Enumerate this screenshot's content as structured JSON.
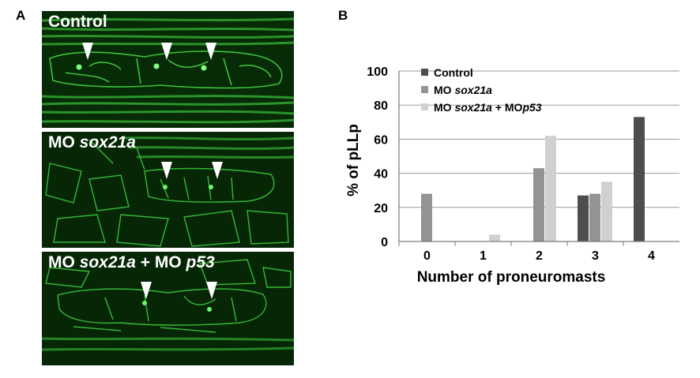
{
  "panel_a": {
    "letter": "A",
    "images": [
      {
        "label_prefix": "Control",
        "label_gene": "",
        "label_mid": "",
        "label_gene2": ""
      },
      {
        "label_prefix": "MO ",
        "label_gene": "sox21a",
        "label_mid": "",
        "label_gene2": ""
      },
      {
        "label_prefix": "MO ",
        "label_gene": "sox21a",
        "label_mid": " + MO ",
        "label_gene2": "p53"
      }
    ]
  },
  "panel_b": {
    "letter": "B"
  },
  "chart_data": {
    "type": "bar",
    "xlabel": "Number of proneuromasts",
    "ylabel": "% of pLLp",
    "categories": [
      "0",
      "1",
      "2",
      "3",
      "4"
    ],
    "ylim": [
      0,
      100
    ],
    "yticks": [
      0,
      20,
      40,
      60,
      80,
      100
    ],
    "grid": true,
    "legend_position": "top-left",
    "series": [
      {
        "name": "Control",
        "name_italic": "",
        "name_suffix": "",
        "name_italic2": "",
        "color": "#4d4d4d",
        "values": [
          0,
          0,
          0,
          27,
          73
        ]
      },
      {
        "name": "MO ",
        "name_italic": "sox21a",
        "name_suffix": "",
        "name_italic2": "",
        "color": "#939393",
        "values": [
          28,
          0,
          43,
          28,
          0
        ]
      },
      {
        "name": "MO ",
        "name_italic": "sox21a",
        "name_suffix": " + MO",
        "name_italic2": "p53",
        "color": "#d0d0d0",
        "values": [
          0,
          4,
          62,
          35,
          0
        ]
      }
    ]
  }
}
